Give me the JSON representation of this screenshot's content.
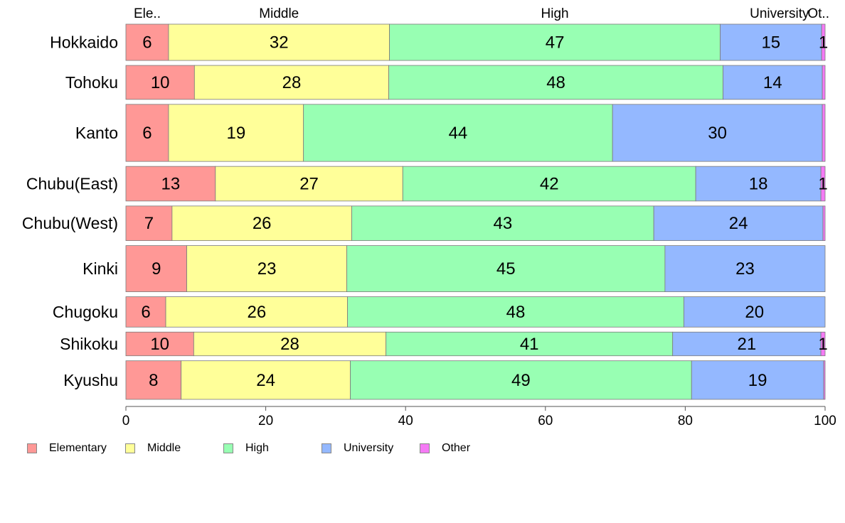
{
  "chart_data": {
    "type": "bar",
    "orientation": "horizontal",
    "stacked": true,
    "categories": [
      "Hokkaido",
      "Tohoku",
      "Kanto",
      "Chubu(East)",
      "Chubu(West)",
      "Kinki",
      "Chugoku",
      "Shikoku",
      "Kyushu"
    ],
    "category_weights": [
      1.1,
      1.03,
      1.73,
      1.05,
      1.05,
      1.4,
      0.92,
      0.72,
      1.17
    ],
    "series": [
      {
        "name": "Elementary",
        "color": "#ff9896",
        "values": [
          6.1,
          9.8,
          6.1,
          12.8,
          6.6,
          8.7,
          5.7,
          9.7,
          7.9
        ],
        "labels": [
          "6",
          "10",
          "6",
          "13",
          "7",
          "9",
          "6",
          "10",
          "8"
        ]
      },
      {
        "name": "Middle",
        "color": "#ffff99",
        "values": [
          31.6,
          27.8,
          19.3,
          26.8,
          25.7,
          22.9,
          26.0,
          27.5,
          24.2
        ],
        "labels": [
          "32",
          "28",
          "19",
          "27",
          "26",
          "23",
          "26",
          "28",
          "24"
        ]
      },
      {
        "name": "High",
        "color": "#98ffb3",
        "values": [
          47.3,
          47.8,
          44.2,
          41.9,
          43.2,
          45.5,
          48.1,
          41.0,
          48.8
        ],
        "labels": [
          "47",
          "48",
          "44",
          "42",
          "43",
          "45",
          "48",
          "41",
          "49"
        ]
      },
      {
        "name": "University",
        "color": "#94b8ff",
        "values": [
          14.5,
          14.2,
          30.0,
          17.9,
          24.2,
          22.9,
          20.2,
          21.2,
          18.9
        ],
        "labels": [
          "15",
          "14",
          "30",
          "18",
          "24",
          "23",
          "20",
          "21",
          "19"
        ]
      },
      {
        "name": "Other",
        "color": "#f57af5",
        "values": [
          0.5,
          0.4,
          0.4,
          0.6,
          0.3,
          0.0,
          0.0,
          0.6,
          0.2
        ],
        "labels": [
          "1",
          "",
          "",
          "1",
          "",
          "",
          "",
          "1",
          ""
        ]
      }
    ],
    "top_labels": [
      "Ele..",
      "Middle",
      "High",
      "University",
      "Ot.."
    ],
    "xlim": [
      0,
      100
    ],
    "xticks": [
      "0",
      "20",
      "40",
      "60",
      "80",
      "100"
    ],
    "grid": false,
    "legend_position": "bottom-left",
    "legend": [
      "Elementary",
      "Middle",
      "High",
      "University",
      "Other"
    ]
  }
}
